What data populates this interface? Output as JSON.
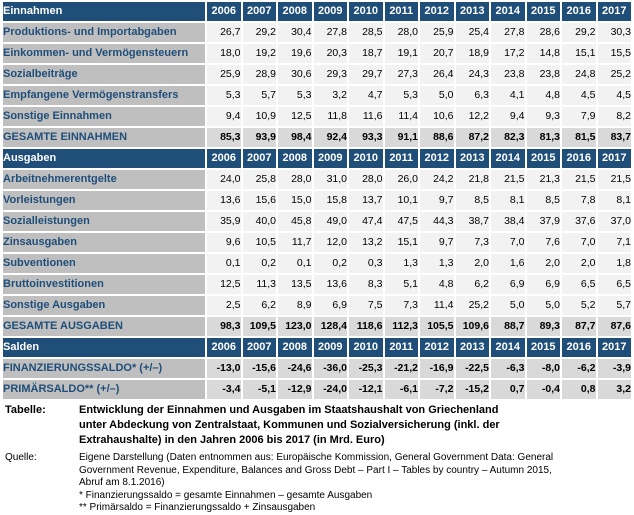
{
  "table": {
    "years": [
      "2006",
      "2007",
      "2008",
      "2009",
      "2010",
      "2011",
      "2012",
      "2013",
      "2014",
      "2015",
      "2016",
      "2017"
    ],
    "sections": [
      {
        "id": "einnahmen",
        "header": "Einnahmen",
        "rows": [
          {
            "label": "Produktions- und Importabgaben",
            "emphasis": false,
            "values": [
              "26,7",
              "29,2",
              "30,4",
              "27,8",
              "28,5",
              "28,0",
              "25,9",
              "25,4",
              "27,8",
              "28,6",
              "29,2",
              "30,3"
            ]
          },
          {
            "label": "Einkommen- und Vermögensteuern",
            "emphasis": false,
            "values": [
              "18,0",
              "19,2",
              "19,6",
              "20,3",
              "18,7",
              "19,1",
              "20,7",
              "18,9",
              "17,2",
              "14,8",
              "15,1",
              "15,5"
            ]
          },
          {
            "label": "Sozialbeiträge",
            "emphasis": false,
            "values": [
              "25,9",
              "28,9",
              "30,6",
              "29,3",
              "29,7",
              "27,3",
              "26,4",
              "24,3",
              "23,8",
              "23,8",
              "24,8",
              "25,2"
            ]
          },
          {
            "label": "Empfangene Vermögenstransfers",
            "emphasis": false,
            "values": [
              "5,3",
              "5,7",
              "5,3",
              "3,2",
              "4,7",
              "5,3",
              "5,0",
              "6,3",
              "4,1",
              "4,8",
              "4,5",
              "4,5"
            ]
          },
          {
            "label": "Sonstige Einnahmen",
            "emphasis": false,
            "values": [
              "9,4",
              "10,9",
              "12,5",
              "11,8",
              "11,6",
              "11,4",
              "10,6",
              "12,2",
              "9,4",
              "9,3",
              "7,9",
              "8,2"
            ]
          },
          {
            "label": "GESAMTE EINNAHMEN",
            "emphasis": true,
            "values": [
              "85,3",
              "93,9",
              "98,4",
              "92,4",
              "93,3",
              "91,1",
              "88,6",
              "87,2",
              "82,3",
              "81,3",
              "81,5",
              "83,7"
            ]
          }
        ]
      },
      {
        "id": "ausgaben",
        "header": "Ausgaben",
        "rows": [
          {
            "label": "Arbeitnehmerentgelte",
            "emphasis": false,
            "values": [
              "24,0",
              "25,8",
              "28,0",
              "31,0",
              "28,0",
              "26,0",
              "24,2",
              "21,8",
              "21,5",
              "21,3",
              "21,5",
              "21,5"
            ]
          },
          {
            "label": "Vorleistungen",
            "emphasis": false,
            "values": [
              "13,6",
              "15,6",
              "15,0",
              "15,8",
              "13,7",
              "10,1",
              "9,7",
              "8,5",
              "8,1",
              "8,5",
              "7,8",
              "8,1"
            ]
          },
          {
            "label": "Sozialleistungen",
            "emphasis": false,
            "values": [
              "35,9",
              "40,0",
              "45,8",
              "49,0",
              "47,4",
              "47,5",
              "44,3",
              "38,7",
              "38,4",
              "37,9",
              "37,6",
              "37,0"
            ]
          },
          {
            "label": "Zinsausgaben",
            "emphasis": false,
            "values": [
              "9,6",
              "10,5",
              "11,7",
              "12,0",
              "13,2",
              "15,1",
              "9,7",
              "7,3",
              "7,0",
              "7,6",
              "7,0",
              "7,1"
            ]
          },
          {
            "label": "Subventionen",
            "emphasis": false,
            "values": [
              "0,1",
              "0,2",
              "0,1",
              "0,2",
              "0,3",
              "1,3",
              "1,3",
              "2,0",
              "1,6",
              "2,0",
              "2,0",
              "1,8"
            ]
          },
          {
            "label": "Bruttoinvestitionen",
            "emphasis": false,
            "values": [
              "12,5",
              "11,3",
              "13,5",
              "13,6",
              "8,3",
              "5,1",
              "4,8",
              "6,2",
              "6,9",
              "6,9",
              "6,5",
              "6,5"
            ]
          },
          {
            "label": "Sonstige Ausgaben",
            "emphasis": false,
            "values": [
              "2,5",
              "6,2",
              "8,9",
              "6,9",
              "7,5",
              "7,3",
              "11,4",
              "25,2",
              "5,0",
              "5,0",
              "5,2",
              "5,7"
            ]
          },
          {
            "label": "GESAMTE AUSGABEN",
            "emphasis": true,
            "values": [
              "98,3",
              "109,5",
              "123,0",
              "128,4",
              "118,6",
              "112,3",
              "105,5",
              "109,6",
              "88,7",
              "89,3",
              "87,7",
              "87,6"
            ]
          }
        ]
      },
      {
        "id": "salden",
        "header": "Salden",
        "rows": [
          {
            "label": "FINANZIERUNGSSALDO* (+/–)",
            "emphasis": true,
            "values": [
              "-13,0",
              "-15,6",
              "-24,6",
              "-36,0",
              "-25,3",
              "-21,2",
              "-16,9",
              "-22,5",
              "-6,3",
              "-8,0",
              "-6,2",
              "-3,9"
            ]
          },
          {
            "label": "PRIMÄRSALDO** (+/–)",
            "emphasis": true,
            "values": [
              "-3,4",
              "-5,1",
              "-12,9",
              "-24,0",
              "-12,1",
              "-6,1",
              "-7,2",
              "-15,2",
              "0,7",
              "-0,4",
              "0,8",
              "3,2"
            ]
          }
        ]
      }
    ]
  },
  "footer": {
    "table_label": "Tabelle:",
    "table_caption": "Entwicklung der Einnahmen und Ausgaben im Staatshaushalt von Griechenland\nunter Abdeckung von Zentralstaat, Kommunen und Sozialversicherung (inkl. der\nExtrahaushalte) in den Jahren 2006 bis 2017 (in Mrd. Euro)",
    "source_label": "Quelle:",
    "source_text": "Eigene Darstellung (Daten entnommen aus: Europäische Kommission, General Government Data: General\nGovernment Revenue, Expenditure, Balances and Gross Debt – Part I – Tables by country – Autumn 2015,\nAbruf am 8.1.2016)\n* Finanzierungssaldo = gesamte Einnahmen – gesamte Ausgaben\n** Primärsaldo = Finanzierungssaldo + Zinsausgaben"
  },
  "colors": {
    "header_bg": "#1F4E79",
    "header_text": "#FFFFFF",
    "row_label_bg": "#BFBFBF",
    "row_label_text": "#1F4E79",
    "cell_bg": "#F2F2F2",
    "total_cell_bg": "#D9D9D9",
    "cell_text": "#000000",
    "grid_gap": "#FFFFFF"
  }
}
